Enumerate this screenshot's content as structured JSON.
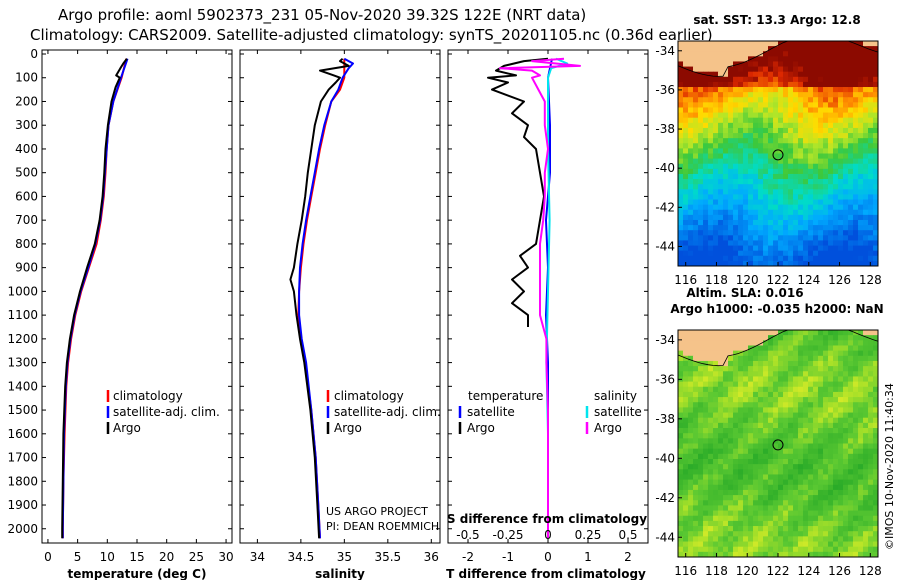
{
  "header": {
    "line1": "Argo profile: aoml 5902373_231 05-Nov-2020 39.32S 122E (NRT data)",
    "line2": "Climatology: CARS2009. Satellite-adjusted climatology: synTS_20201105.nc (0.36d earlier)"
  },
  "colors": {
    "climatology": "#ff0000",
    "satellite": "#0000ff",
    "argo": "#000000",
    "satellite_salinity": "#00e5ee",
    "argo_salinity": "#ff00ff",
    "land": "#f5c38a"
  },
  "chart_data": [
    {
      "type": "line",
      "id": "temperature",
      "xlabel": "temperature (deg C)",
      "xlim": [
        -1,
        31
      ],
      "xticks": [
        "0",
        "5",
        "10",
        "15",
        "20",
        "25",
        "30"
      ],
      "ylim": [
        2060,
        0
      ],
      "yticks": [
        "0",
        "100",
        "200",
        "300",
        "400",
        "500",
        "600",
        "700",
        "800",
        "900",
        "1000",
        "1100",
        "1200",
        "1300",
        "1400",
        "1500",
        "1600",
        "1700",
        "1800",
        "1900",
        "2000"
      ],
      "legend": [
        "climatology",
        "satellite-adj. clim.",
        "Argo"
      ],
      "series": [
        {
          "name": "climatology",
          "color": "#ff0000",
          "depth": [
            20,
            100,
            200,
            300,
            400,
            500,
            600,
            700,
            800,
            900,
            1000,
            1100,
            1200,
            1300,
            1400,
            1600,
            1800,
            2000,
            2040
          ],
          "values": [
            13.2,
            12.4,
            11.0,
            10.2,
            9.9,
            9.7,
            9.4,
            8.9,
            8.2,
            6.9,
            5.6,
            4.6,
            3.9,
            3.4,
            3.1,
            2.8,
            2.6,
            2.5,
            2.5
          ]
        },
        {
          "name": "satellite-adj. clim.",
          "color": "#0000ff",
          "depth": [
            20,
            100,
            200,
            300,
            400,
            500,
            600,
            700,
            800,
            900,
            1000,
            1100,
            1200,
            1300,
            1400,
            1600,
            1800,
            2000,
            2040
          ],
          "values": [
            13.4,
            12.3,
            11.0,
            10.2,
            9.9,
            9.6,
            9.3,
            8.8,
            8.0,
            6.8,
            5.5,
            4.5,
            3.8,
            3.3,
            3.0,
            2.7,
            2.6,
            2.5,
            2.5
          ]
        },
        {
          "name": "Argo",
          "color": "#000000",
          "depth": [
            20,
            40,
            60,
            90,
            100,
            140,
            200,
            300,
            400,
            500,
            600,
            700,
            800,
            900,
            1000,
            1100,
            1200,
            1300,
            1400,
            1600,
            1800,
            2000,
            2040
          ],
          "values": [
            13.3,
            12.7,
            12.2,
            11.5,
            12.1,
            11.4,
            10.7,
            10.1,
            9.7,
            9.5,
            9.2,
            8.7,
            7.9,
            6.6,
            5.4,
            4.4,
            3.7,
            3.2,
            2.9,
            2.6,
            2.5,
            2.4,
            2.4
          ]
        }
      ]
    },
    {
      "type": "line",
      "id": "salinity",
      "xlabel": "salinity",
      "xlim": [
        33.8,
        36.1
      ],
      "xticks": [
        "34",
        "34.5",
        "35",
        "35.5",
        "36"
      ],
      "ylim": [
        2060,
        0
      ],
      "legend": [
        "climatology",
        "satellite-adj. clim.",
        "Argo"
      ],
      "series": [
        {
          "name": "climatology",
          "color": "#ff0000",
          "depth": [
            20,
            100,
            150,
            200,
            300,
            400,
            500,
            600,
            700,
            800,
            900,
            1000,
            1100,
            1200,
            1300,
            1500,
            1700,
            1900,
            2040
          ],
          "values": [
            35.0,
            35.0,
            34.95,
            34.85,
            34.78,
            34.72,
            34.67,
            34.62,
            34.57,
            34.53,
            34.5,
            34.48,
            34.47,
            34.5,
            34.55,
            34.62,
            34.67,
            34.7,
            34.72
          ]
        },
        {
          "name": "satellite-adj. clim.",
          "color": "#0000ff",
          "depth": [
            20,
            40,
            60,
            100,
            150,
            200,
            300,
            400,
            500,
            600,
            700,
            800,
            900,
            1000,
            1100,
            1200,
            1300,
            1500,
            1700,
            1900,
            2040
          ],
          "values": [
            35.0,
            35.1,
            35.05,
            34.98,
            34.93,
            34.85,
            34.77,
            34.71,
            34.66,
            34.61,
            34.56,
            34.52,
            34.49,
            34.48,
            34.48,
            34.51,
            34.56,
            34.62,
            34.67,
            34.7,
            34.72
          ]
        },
        {
          "name": "Argo",
          "color": "#000000",
          "depth": [
            20,
            30,
            50,
            70,
            90,
            100,
            120,
            150,
            200,
            300,
            400,
            500,
            600,
            700,
            800,
            900,
            950,
            1000,
            1100,
            1200,
            1300,
            1500,
            1700,
            1900,
            2040
          ],
          "values": [
            34.98,
            34.95,
            35.05,
            34.72,
            34.88,
            34.95,
            34.9,
            34.82,
            34.73,
            34.66,
            34.62,
            34.58,
            34.55,
            34.51,
            34.46,
            34.42,
            34.38,
            34.42,
            34.45,
            34.49,
            34.54,
            34.61,
            34.66,
            34.69,
            34.71
          ]
        }
      ]
    },
    {
      "type": "line",
      "id": "difference",
      "xlabel": "T difference from climatology",
      "xlabel2": "S difference from climatology",
      "xlim": [
        -2.5,
        2.5
      ],
      "xticks": [
        "-2",
        "-1",
        "0",
        "1",
        "2"
      ],
      "xticks2": [
        "-0.5",
        "-0.25",
        "0",
        "0.25",
        "0.5"
      ],
      "xticks2_values": [
        -0.5,
        -0.25,
        0,
        0.25,
        0.5
      ],
      "ylim": [
        2060,
        0
      ],
      "legend_left_title": "temperature",
      "legend_right_title": "salinity",
      "legend_left": [
        "satellite",
        "Argo"
      ],
      "legend_right": [
        "satellite",
        "Argo"
      ],
      "series": [
        {
          "name": "T satellite",
          "color": "#0000ff",
          "depth": [
            20,
            100,
            300,
            500,
            700,
            900,
            1100,
            1300,
            1600,
            1800,
            2040
          ],
          "values": [
            0.1,
            0.0,
            0.05,
            0.05,
            -0.05,
            0.0,
            -0.05,
            0.0,
            0.0,
            0.0,
            0.0
          ]
        },
        {
          "name": "T Argo",
          "color": "#000000",
          "depth": [
            20,
            30,
            50,
            70,
            90,
            100,
            120,
            150,
            200,
            250,
            300,
            350,
            400,
            500,
            600,
            700,
            800,
            850,
            900,
            950,
            1000,
            1050,
            1100,
            1150
          ],
          "values": [
            0.0,
            -0.6,
            -1.1,
            -1.3,
            -0.8,
            -1.5,
            -1.0,
            -1.4,
            -0.6,
            -0.9,
            -0.5,
            -0.6,
            -0.3,
            -0.2,
            -0.1,
            -0.2,
            -0.3,
            -0.7,
            -0.5,
            -0.9,
            -0.6,
            -0.9,
            -0.5,
            -0.5
          ]
        },
        {
          "name": "S satellite",
          "color": "#00e5ee",
          "depth": [
            20,
            40,
            60,
            100,
            200,
            400,
            700,
            1000,
            1300,
            1600,
            1900,
            2040
          ],
          "values": [
            0.05,
            0.12,
            0.02,
            0.0,
            0.0,
            0.0,
            0.01,
            0.0,
            -0.01,
            0.0,
            0.0,
            0.0
          ]
        },
        {
          "name": "S Argo",
          "color": "#ff00ff",
          "depth": [
            20,
            30,
            50,
            60,
            70,
            90,
            100,
            150,
            200,
            300,
            400,
            500,
            600,
            700,
            800,
            900,
            1000,
            1100,
            1200,
            1300,
            1500,
            1700,
            1900,
            2040
          ],
          "values": [
            0.1,
            -0.1,
            0.2,
            -0.3,
            -0.1,
            -0.05,
            -0.1,
            -0.06,
            -0.02,
            -0.02,
            0.0,
            -0.02,
            -0.02,
            -0.03,
            -0.05,
            -0.05,
            -0.05,
            -0.05,
            -0.01,
            -0.01,
            0.0,
            0.0,
            0.0,
            0.0
          ]
        }
      ]
    },
    {
      "type": "heatmap",
      "id": "sst-map",
      "title": "sat. SST: 13.3 Argo: 12.8",
      "xlim": [
        115.5,
        128.5
      ],
      "ylim": [
        -45,
        -33.5
      ],
      "xticks": [
        "116",
        "118",
        "120",
        "122",
        "124",
        "126",
        "128"
      ],
      "yticks": [
        "-34",
        "-36",
        "-38",
        "-40",
        "-42",
        "-44"
      ],
      "argo_position": [
        122,
        -39.32
      ]
    },
    {
      "type": "heatmap",
      "id": "sla-map",
      "title": "Altim. SLA: 0.016",
      "subtitle": "Argo h1000: -0.035 h2000: NaN",
      "xlim": [
        115.5,
        128.5
      ],
      "ylim": [
        -45,
        -33.5
      ],
      "xticks": [
        "116",
        "118",
        "120",
        "122",
        "124",
        "126",
        "128"
      ],
      "yticks": [
        "-34",
        "-36",
        "-38",
        "-40",
        "-42",
        "-44"
      ],
      "argo_position": [
        122,
        -39.32
      ]
    }
  ],
  "credits": {
    "project": "US ARGO PROJECT",
    "pi": "PI: DEAN ROEMMICH",
    "imos": "©IMOS 10-Nov-2020 11:40:34"
  }
}
